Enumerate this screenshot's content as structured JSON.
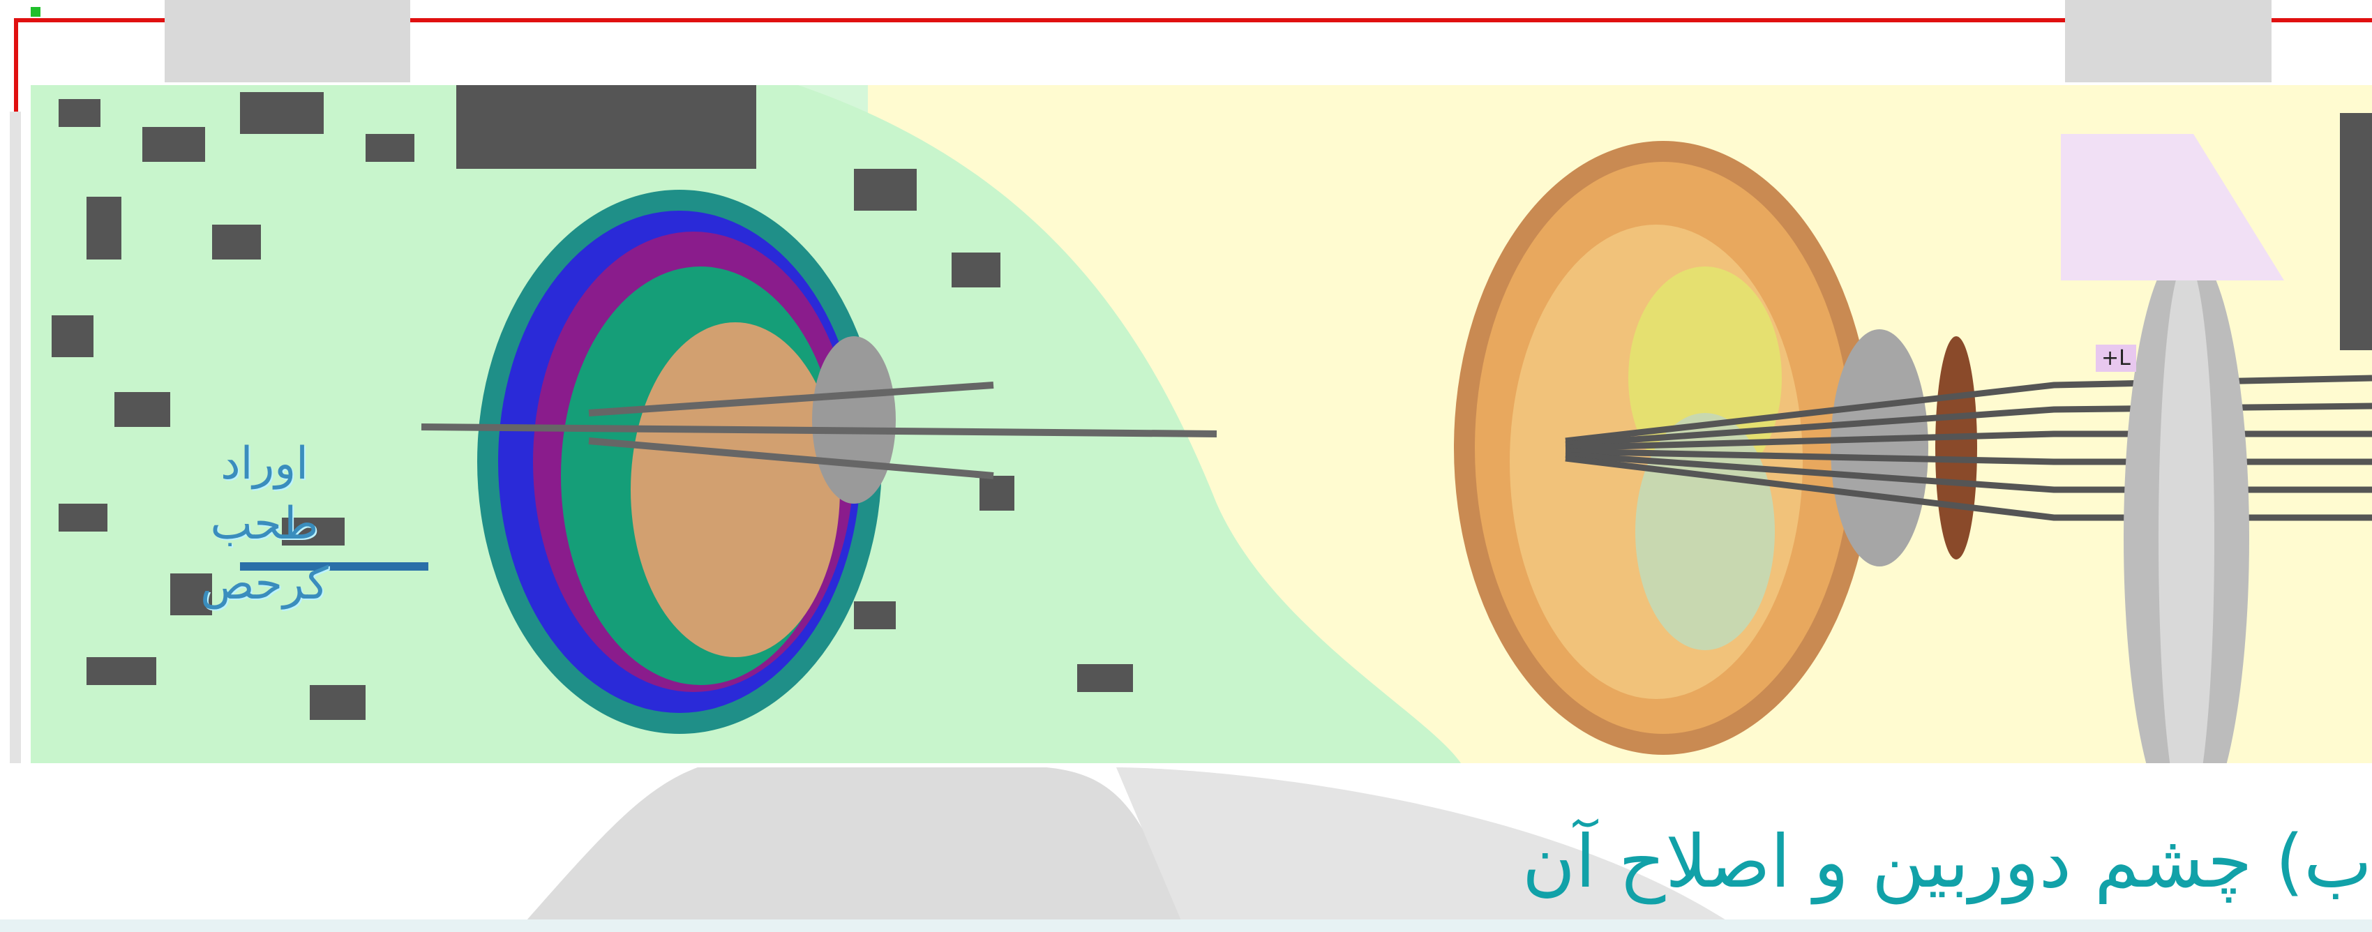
{
  "figure": {
    "left_caption": "اوراد\nطحب\nکرحص",
    "lens_label": "+L"
  },
  "heading": "ب) چشم دوربین و اصلاح آن",
  "colors": {
    "frame": "#e01010",
    "background": "#fffbd0",
    "heading": "#11a1a8",
    "iris": "#b07a3a",
    "lens": "#9a9a9a"
  },
  "icons": {
    "corner": "green-square"
  }
}
